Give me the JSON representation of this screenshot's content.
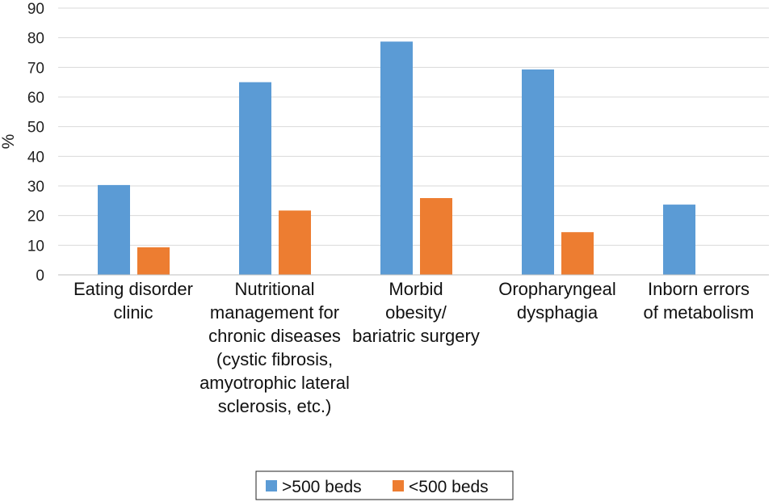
{
  "chart_data": {
    "type": "bar",
    "title": "",
    "xlabel": "",
    "ylabel": "%",
    "ylim": [
      0,
      90
    ],
    "yticks": [
      0,
      10,
      20,
      30,
      40,
      50,
      60,
      70,
      80,
      90
    ],
    "grid": true,
    "legend_position": "bottom",
    "categories": [
      [
        "Eating disorder",
        "clinic"
      ],
      [
        "Nutritional",
        "management for",
        "chronic diseases",
        "(cystic fibrosis,",
        "amyotrophic lateral",
        "sclerosis, etc.)"
      ],
      [
        "Morbid",
        "obesity/",
        "bariatric surgery"
      ],
      [
        "Oropharyngeal",
        "dysphagia"
      ],
      [
        "Inborn errors",
        "of metabolism"
      ]
    ],
    "series": [
      {
        "name": ">500 beds",
        "color": "#5B9BD5",
        "values": [
          30.3,
          65.0,
          78.7,
          69.3,
          23.7
        ]
      },
      {
        "name": "<500 beds",
        "color": "#ED7D31",
        "values": [
          9.3,
          21.7,
          25.9,
          14.4,
          0
        ]
      }
    ]
  }
}
